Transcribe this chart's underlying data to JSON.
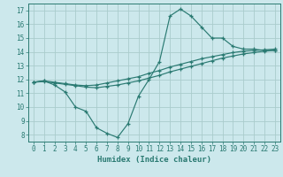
{
  "xlabel": "Humidex (Indice chaleur)",
  "bg_color": "#cce8ec",
  "grid_color": "#aacccc",
  "line_color": "#2a7a72",
  "xmin": -0.5,
  "xmax": 23.5,
  "ymin": 7.5,
  "ymax": 17.5,
  "yticks": [
    8,
    9,
    10,
    11,
    12,
    13,
    14,
    15,
    16,
    17
  ],
  "xticks": [
    0,
    1,
    2,
    3,
    4,
    5,
    6,
    7,
    8,
    9,
    10,
    11,
    12,
    13,
    14,
    15,
    16,
    17,
    18,
    19,
    20,
    21,
    22,
    23
  ],
  "line1_x": [
    0,
    1,
    2,
    3,
    4,
    5,
    6,
    7,
    8,
    9,
    10,
    11,
    12,
    13,
    14,
    15,
    16,
    17,
    18,
    19,
    20,
    21,
    22,
    23
  ],
  "line1_y": [
    11.8,
    11.9,
    11.6,
    11.1,
    10.0,
    9.7,
    8.5,
    8.1,
    7.8,
    8.8,
    10.8,
    12.0,
    13.3,
    16.6,
    17.1,
    16.6,
    15.8,
    15.0,
    15.0,
    14.4,
    14.2,
    14.2,
    14.1,
    14.1
  ],
  "line2_x": [
    0,
    1,
    2,
    3,
    4,
    5,
    6,
    7,
    8,
    9,
    10,
    11,
    12,
    13,
    14,
    15,
    16,
    17,
    18,
    19,
    20,
    21,
    22,
    23
  ],
  "line2_y": [
    11.8,
    11.85,
    11.75,
    11.65,
    11.55,
    11.45,
    11.4,
    11.5,
    11.6,
    11.75,
    11.9,
    12.1,
    12.3,
    12.55,
    12.75,
    12.95,
    13.15,
    13.35,
    13.55,
    13.7,
    13.85,
    13.95,
    14.05,
    14.1
  ],
  "line3_x": [
    0,
    1,
    2,
    3,
    4,
    5,
    6,
    7,
    8,
    9,
    10,
    11,
    12,
    13,
    14,
    15,
    16,
    17,
    18,
    19,
    20,
    21,
    22,
    23
  ],
  "line3_y": [
    11.8,
    11.9,
    11.8,
    11.7,
    11.6,
    11.55,
    11.6,
    11.75,
    11.9,
    12.05,
    12.2,
    12.45,
    12.65,
    12.9,
    13.1,
    13.3,
    13.5,
    13.65,
    13.8,
    13.95,
    14.05,
    14.1,
    14.15,
    14.2
  ]
}
